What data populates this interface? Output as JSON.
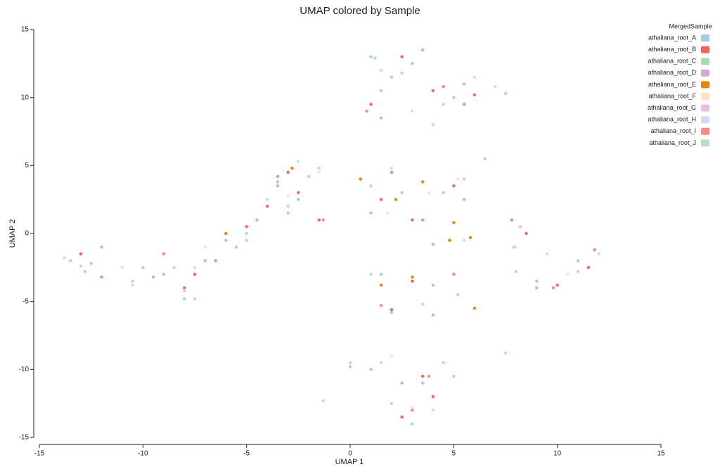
{
  "chart_data": {
    "type": "scatter",
    "title": "UMAP colored by Sample",
    "x_label": "UMAP 1",
    "y_label": "UMAP 2",
    "legend_title": "MergedSample",
    "legend_position": "upper-right",
    "xlim": [
      -15,
      15
    ],
    "ylim": [
      -15,
      15
    ],
    "xticks": [
      -15,
      -10,
      -5,
      0,
      5,
      10,
      15
    ],
    "yticks": [
      -15,
      -10,
      -5,
      0,
      5,
      10,
      15
    ],
    "series": [
      {
        "name": "athaliana_root_A",
        "color": "#aec7e8",
        "x": [
          -12.5,
          -9,
          -6,
          -3.5,
          1.5,
          3,
          5.5,
          2.5,
          4,
          9,
          11,
          2,
          3.5,
          1,
          -2.5
        ],
        "y": [
          -2.2,
          -3,
          -0.5,
          3.8,
          10.5,
          12.5,
          11,
          3,
          -3.8,
          -3.5,
          -2,
          -5.8,
          -11,
          -10,
          2.5
        ]
      },
      {
        "name": "athaliana_root_B",
        "color": "#f4645c",
        "x": [
          -13,
          -11,
          -8,
          -7.5,
          -5,
          -4,
          -3,
          -2.5,
          1,
          2.5,
          4,
          6,
          1.5,
          3,
          5,
          8.5,
          10,
          11.5,
          3,
          2,
          4,
          3.5,
          2.5,
          -1.5
        ],
        "y": [
          -1.5,
          -2.5,
          -4,
          -3,
          0.5,
          2,
          4.5,
          3,
          9.5,
          13,
          10.5,
          10.2,
          2.5,
          1,
          3.5,
          0,
          -3.8,
          -2.5,
          -3.5,
          -5.6,
          -12,
          -10.5,
          -13.5,
          1
        ]
      },
      {
        "name": "athaliana_root_C",
        "color": "#a6dcb2",
        "x": [
          -13.5,
          -10,
          -8,
          -5.5,
          -3,
          2,
          1,
          5,
          7.5,
          6.5,
          4.5,
          1.5,
          0,
          5,
          3
        ],
        "y": [
          -2,
          -2.5,
          -4.8,
          -1,
          1.5,
          11.5,
          13,
          10,
          10.3,
          5.5,
          3,
          -3,
          -9.8,
          -10.5,
          -14
        ]
      },
      {
        "name": "athaliana_root_D",
        "color": "#d4a9d9",
        "x": [
          -12,
          -9.5,
          -7,
          -4.5,
          -3.5,
          1.5,
          3.5,
          5.5,
          1,
          4,
          9,
          4,
          2.5
        ],
        "y": [
          -1,
          -3.2,
          -2,
          1,
          3.5,
          8.5,
          13.5,
          2.5,
          1.5,
          -0.8,
          -4,
          -6,
          -11
        ]
      },
      {
        "name": "athaliana_root_E",
        "color": "#e6850e",
        "x": [
          -6,
          -2.8,
          0.5,
          2.2,
          3.5,
          5,
          5.8,
          4.8,
          6,
          3,
          1.5
        ],
        "y": [
          0,
          4.8,
          4,
          2.5,
          3.8,
          0.8,
          -0.3,
          -0.5,
          -5.5,
          -3.2,
          -3.8
        ]
      },
      {
        "name": "athaliana_root_F",
        "color": "#fde3c4",
        "x": [
          -11,
          -7,
          -3,
          -1.5,
          1.8,
          3.8,
          5.2,
          8,
          10.5,
          2,
          3
        ],
        "y": [
          -2.5,
          -1,
          2.8,
          4.5,
          1.5,
          3,
          4,
          -1,
          -3,
          -9,
          -12.8
        ]
      },
      {
        "name": "athaliana_root_G",
        "color": "#e8c0dc",
        "x": [
          -12.8,
          -8.5,
          -8,
          -5,
          -2,
          1,
          2.5,
          4.5,
          5.5,
          8.2,
          11,
          3.5,
          4.5,
          2
        ],
        "y": [
          -2.8,
          -2.5,
          -4.2,
          -0.5,
          4.2,
          3.5,
          11.8,
          9.5,
          4,
          0.5,
          -2.8,
          -5.2,
          -9.5,
          -12.5
        ]
      },
      {
        "name": "athaliana_root_H",
        "color": "#cfdcf0",
        "x": [
          -13.8,
          -10.5,
          -7.5,
          -4,
          -2.5,
          1.5,
          3,
          6,
          7,
          2,
          5.5,
          9.5,
          12,
          1.5,
          4
        ],
        "y": [
          -1.8,
          -3.8,
          -2.5,
          2.5,
          5.3,
          12,
          9,
          11.5,
          10.8,
          4.8,
          -0.5,
          -1.5,
          -1.5,
          -9.5,
          -13
        ]
      },
      {
        "name": "athaliana_root_I",
        "color": "#f88a86",
        "x": [
          -12,
          -9,
          -6.5,
          -3.5,
          -1.3,
          0.8,
          4.5,
          5.5,
          2,
          3.5,
          7.8,
          9.8,
          11.8,
          5,
          1.5,
          3.8,
          3
        ],
        "y": [
          -3.2,
          -1.5,
          -2,
          4.2,
          1,
          9,
          10.8,
          9.5,
          4.5,
          1,
          1,
          -4,
          -1.2,
          -3,
          -5.3,
          -10.5,
          -13
        ]
      },
      {
        "name": "athaliana_root_J",
        "color": "#b5dfc6",
        "x": [
          -13,
          -10.5,
          -7.5,
          -5,
          -3,
          -1.5,
          1.2,
          4,
          7.9,
          8,
          1,
          5.2,
          0,
          -1.3,
          7.5
        ],
        "y": [
          -2.4,
          -3.5,
          -4.8,
          0,
          2,
          4.8,
          12.9,
          8,
          -1,
          -2.8,
          -3,
          -4.5,
          -9.5,
          -12.3,
          -8.8
        ]
      }
    ]
  }
}
